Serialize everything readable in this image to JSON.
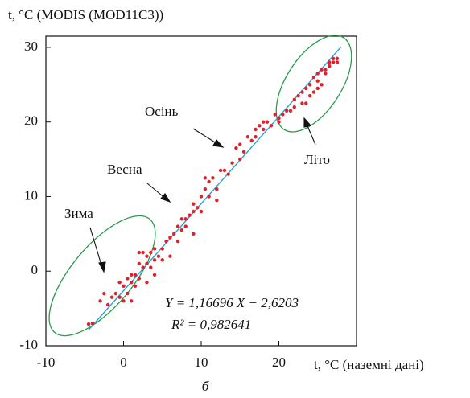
{
  "chart_data": {
    "type": "scatter",
    "y_label": "t, °C (MODIS (MOD11C3))",
    "x_label": "t, °C (наземні дані)",
    "caption": "б",
    "annotations": [
      "Осінь",
      "Весна",
      "Зима",
      "Літо"
    ],
    "equation": "Y = 1,16696  X − 2,6203",
    "r_squared": "R² = 0,982641",
    "fit_line": {
      "slope": 1.16696,
      "intercept": -2.6203,
      "x": [
        -4.5,
        28
      ],
      "color": "#2a9fd6"
    },
    "xlim": [
      -10,
      30
    ],
    "ylim": [
      -10,
      31.5
    ],
    "xticks": [
      -10,
      0,
      10,
      20
    ],
    "yticks": [
      -10,
      0,
      10,
      20,
      30
    ],
    "series": [
      {
        "color": "#e0202a",
        "x": [
          -4.5,
          -4,
          -3,
          -2.5,
          -2,
          -1.5,
          -1,
          -0.5,
          0,
          0,
          0.5,
          0.5,
          1,
          1,
          1.5,
          1.5,
          2,
          2,
          2.5,
          2.5,
          3,
          3,
          3,
          3.5,
          3.5,
          4,
          4,
          4.5,
          4,
          2,
          1,
          -0.5,
          5,
          5,
          5.5,
          6,
          6,
          6.5,
          7,
          7,
          7.5,
          7.5,
          8,
          8,
          8.5,
          9,
          9,
          9.5,
          10,
          10,
          10.5,
          10.5,
          11,
          11,
          11.5,
          12,
          12,
          9,
          12.5,
          13,
          13.5,
          14,
          14.5,
          15,
          15,
          15.5,
          16,
          16.5,
          17,
          17,
          17.5,
          18,
          18,
          18.5,
          19,
          19.5,
          20,
          20,
          20.5,
          21,
          21.5,
          22,
          22,
          22.5,
          23,
          23,
          23.5,
          23.5,
          24,
          24,
          24.5,
          24.5,
          25,
          25,
          25.5,
          25.5,
          26,
          26,
          26.5,
          26.5,
          27,
          27,
          27.5,
          27.5,
          25
        ],
        "y": [
          -7.1,
          -7,
          -4,
          -3,
          -4.5,
          -3.5,
          -3,
          -3.5,
          -2,
          -4,
          -1,
          -3,
          -1.5,
          -4,
          -2,
          -0.5,
          1,
          -1,
          0.5,
          2.5,
          1,
          2,
          -1.5,
          2.5,
          0.5,
          1.5,
          3,
          2,
          -0.5,
          2.5,
          -0.5,
          -1.5,
          1.5,
          3,
          4,
          2,
          4.5,
          5,
          4,
          6,
          5.5,
          7,
          7,
          6,
          7.5,
          8,
          9,
          8.5,
          10,
          8,
          11,
          12.5,
          10,
          12,
          12.5,
          11,
          9.5,
          5,
          13.5,
          13.5,
          13,
          14.5,
          16.5,
          17,
          15,
          16,
          18,
          17.5,
          19,
          18,
          19.5,
          19,
          20,
          20,
          19.5,
          21,
          20.5,
          20,
          21,
          21.5,
          21.5,
          23,
          22,
          23.5,
          22.5,
          24,
          22.5,
          24.5,
          25,
          23.5,
          24,
          26,
          25.5,
          26.5,
          27,
          25,
          26.5,
          27,
          27.5,
          28,
          28,
          28.5,
          28.5,
          28,
          24.5
        ]
      }
    ]
  }
}
